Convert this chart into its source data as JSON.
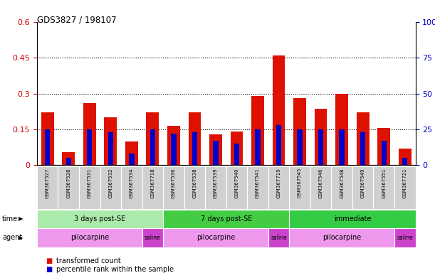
{
  "title": "GDS3827 / 198107",
  "samples": [
    "GSM367527",
    "GSM367528",
    "GSM367531",
    "GSM367532",
    "GSM367534",
    "GSM367718",
    "GSM367536",
    "GSM367538",
    "GSM367539",
    "GSM367540",
    "GSM367541",
    "GSM367719",
    "GSM367545",
    "GSM367546",
    "GSM367548",
    "GSM367549",
    "GSM367551",
    "GSM367721"
  ],
  "red_values": [
    0.22,
    0.055,
    0.26,
    0.2,
    0.1,
    0.22,
    0.165,
    0.22,
    0.13,
    0.14,
    0.29,
    0.46,
    0.28,
    0.235,
    0.3,
    0.22,
    0.155,
    0.07
  ],
  "blue_pct": [
    25,
    5,
    25,
    23,
    8,
    25,
    22,
    23,
    17,
    15,
    25,
    28,
    25,
    25,
    25,
    23,
    17,
    5
  ],
  "ylim_left": [
    0,
    0.6
  ],
  "ylim_right": [
    0,
    100
  ],
  "yticks_left": [
    0,
    0.15,
    0.3,
    0.45,
    0.6
  ],
  "yticks_right": [
    0,
    25,
    50,
    75,
    100
  ],
  "left_color": "#cc0000",
  "right_color": "#0000cc",
  "bar_red_color": "#dd1100",
  "bar_blue_color": "#0000cc",
  "time_groups": [
    {
      "label": "3 days post-SE",
      "start": 0,
      "end": 5,
      "color": "#aaeaaa"
    },
    {
      "label": "7 days post-SE",
      "start": 6,
      "end": 11,
      "color": "#44cc44"
    },
    {
      "label": "immediate",
      "start": 12,
      "end": 17,
      "color": "#33cc44"
    }
  ],
  "agent_groups": [
    {
      "label": "pilocarpine",
      "start": 0,
      "end": 4,
      "color": "#ee99ee"
    },
    {
      "label": "saline",
      "start": 5,
      "end": 5,
      "color": "#cc44cc"
    },
    {
      "label": "pilocarpine",
      "start": 6,
      "end": 10,
      "color": "#ee99ee"
    },
    {
      "label": "saline",
      "start": 11,
      "end": 11,
      "color": "#cc44cc"
    },
    {
      "label": "pilocarpine",
      "start": 12,
      "end": 16,
      "color": "#ee99ee"
    },
    {
      "label": "saline",
      "start": 17,
      "end": 17,
      "color": "#cc44cc"
    }
  ],
  "legend_items": [
    {
      "label": "transformed count",
      "color": "#dd1100"
    },
    {
      "label": "percentile rank within the sample",
      "color": "#0000cc"
    }
  ]
}
